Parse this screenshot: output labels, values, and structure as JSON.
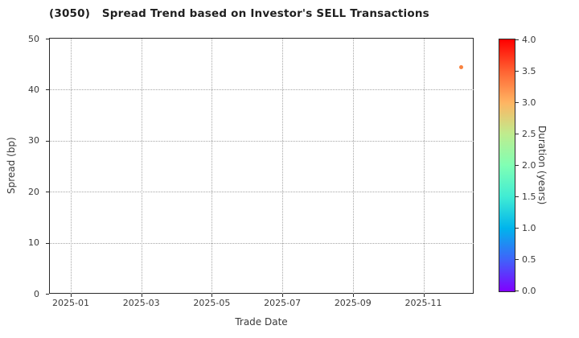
{
  "chart_data": {
    "type": "scatter",
    "title": "(3050)   Spread Trend based on Investor's SELL Transactions",
    "xlabel": "Trade Date",
    "ylabel": "Spread (bp)",
    "x_tick_labels": [
      "2025-01",
      "2025-03",
      "2025-05",
      "2025-07",
      "2025-09",
      "2025-11"
    ],
    "y_ticks": [
      0,
      10,
      20,
      30,
      40,
      50
    ],
    "ylim": [
      0,
      50
    ],
    "grid": "dotted",
    "legend_position": "none",
    "points": [
      {
        "trade_date": "2025-12-03",
        "spread_bp": 44.4,
        "duration_years": 3.3,
        "color": "#f8823f"
      }
    ],
    "colorbar": {
      "label": "Duration (years)",
      "min": 0.0,
      "max": 4.0,
      "ticks": [
        0.0,
        0.5,
        1.0,
        1.5,
        2.0,
        2.5,
        3.0,
        3.5,
        4.0
      ],
      "colormap": "rainbow",
      "gradient_stops": [
        "#8000ff",
        "#4062fa",
        "#00b4ec",
        "#40ecd4",
        "#80ffb4",
        "#bfec8e",
        "#ffb462",
        "#ff6232",
        "#ff0000"
      ]
    },
    "colors": {
      "spine": "#2a2a2a",
      "grid": "#a6a6a6",
      "text": "#3a3a3a",
      "title_text": "#1f1f1f",
      "background": "#ffffff"
    }
  }
}
